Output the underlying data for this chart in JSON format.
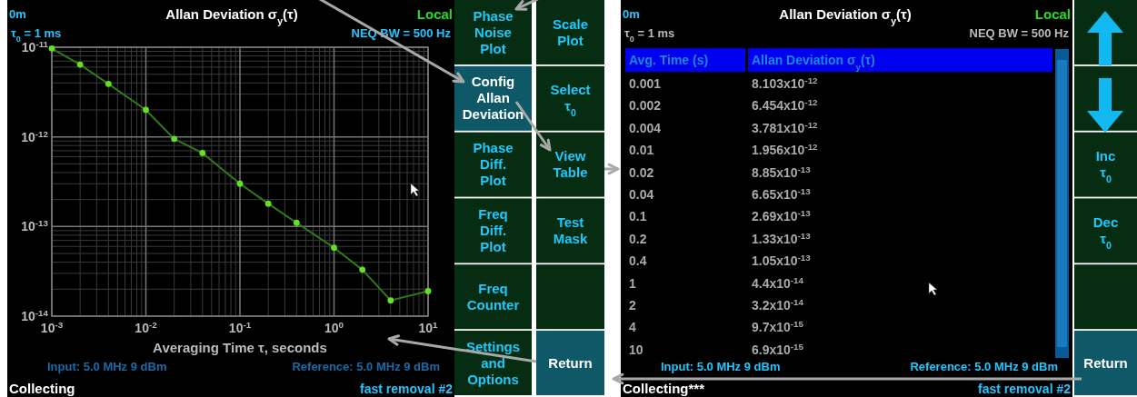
{
  "chart_data": [
    {
      "type": "line",
      "title": "Allan Deviation σ$_{y}$(τ)",
      "xlabel": "Averaging Time τ, seconds",
      "log": "xy",
      "grid": true,
      "marker": "circle",
      "line_style": "solid",
      "x": [
        0.001,
        0.002,
        0.004,
        0.01,
        0.02,
        0.04,
        0.1,
        0.2,
        0.4,
        1,
        2,
        4,
        10
      ],
      "series": [
        {
          "color": "#66e022",
          "values": [
            9.7e-12,
            6.4e-12,
            3.9e-12,
            2e-12,
            9.5e-13,
            6.6e-13,
            3e-13,
            1.8e-13,
            1.1e-13,
            5.8e-14,
            3.3e-14,
            1.5e-14,
            1.9e-14
          ]
        }
      ],
      "xlim": [
        0.001,
        10
      ],
      "ylim": [
        1e-14,
        1e-11
      ],
      "xticks": [
        {
          "value": 0.001,
          "label": "10$^{-3}$"
        },
        {
          "value": 0.01,
          "label": "10$^{-2}$"
        },
        {
          "value": 0.1,
          "label": "10$^{-1}$"
        },
        {
          "value": 1,
          "label": "10$^{0}$"
        },
        {
          "value": 10,
          "label": "10$^{1}$"
        }
      ],
      "yticks": [
        {
          "value": 1e-14,
          "label": "10$^{-14}$"
        },
        {
          "value": 1e-13,
          "label": "10$^{-13}$"
        },
        {
          "value": 1e-12,
          "label": "10$^{-12}$"
        },
        {
          "value": 1e-11,
          "label": "10$^{-11}$"
        }
      ],
      "annotations": [
        "0m",
        "Local",
        "τ$_{0}$ = 1 ms",
        "NEQ BW = 500 Hz",
        "Input: 5.0 MHz 9 dBm",
        "Reference: 5.0 MHz 9 dBm",
        "Collecting",
        "fast removal #2",
        "Phase Noise Plot",
        "Config Allan Deviation",
        "Phase Diff. Plot",
        "Freq Diff. Plot",
        "Freq Counter",
        "Settings and Options"
      ]
    },
    {
      "type": "other",
      "title": "Allan Deviation σ$_{y}$(τ)",
      "xlabel": "Avg. Time (s)",
      "ylabel": "Allan Deviation σ$_{y}$(τ)",
      "categories": [
        "0.001",
        "0.002",
        "0.004",
        "0.01",
        "0.02",
        "0.04",
        "0.1",
        "0.2",
        "0.4",
        "1",
        "2",
        "4",
        "10"
      ],
      "value_labels": [
        "8.103x10$^{-12}$",
        "6.454x10$^{-12}$",
        "3.781x10$^{-12}$",
        "1.956x10$^{-12}$",
        "8.85x10$^{-13}$",
        "6.65x10$^{-13}$",
        "2.69x10$^{-13}$",
        "1.33x10$^{-13}$",
        "1.05x10$^{-13}$",
        "4.4x10$^{-14}$",
        "3.2x10$^{-14}$",
        "9.7x10$^{-15}$",
        "6.9x10$^{-15}$"
      ],
      "annotations": [
        "0m",
        "Local",
        "τ$_{0}$ = 1 ms",
        "NEQ BW = 500 Hz",
        "Input: 5.0 MHz 9 dBm",
        "Reference: 5.0 MHz 9 dBm",
        "Collecting***",
        "fast removal #2",
        "Scale Plot",
        "Select τ$_{0}$",
        "View Table",
        "Test Mask",
        "Return",
        "Inc τ$_{0}$",
        "Dec τ$_{0}$",
        "Return"
      ]
    }
  ]
}
